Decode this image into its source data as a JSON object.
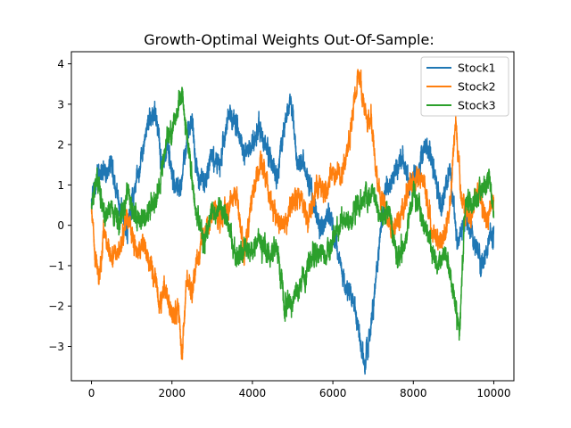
{
  "chart_data": {
    "type": "line",
    "title": "Growth-Optimal Weights Out-Of-Sample:",
    "xlabel": "",
    "ylabel": "",
    "xlim": [
      -500,
      10500
    ],
    "ylim": [
      -3.85,
      4.3
    ],
    "x_ticks": [
      0,
      2000,
      4000,
      6000,
      8000,
      10000
    ],
    "y_ticks": [
      -3,
      -2,
      -1,
      0,
      1,
      2,
      3,
      4
    ],
    "grid": false,
    "legend_position": "top-right",
    "n_points": 10000,
    "series": [
      {
        "name": "Stock1",
        "color": "#1f77b4",
        "x": [
          0,
          150,
          300,
          500,
          700,
          900,
          1000,
          1200,
          1400,
          1600,
          1750,
          1900,
          2000,
          2200,
          2300,
          2500,
          2600,
          2800,
          3000,
          3200,
          3400,
          3600,
          3800,
          4000,
          4200,
          4400,
          4600,
          4800,
          4950,
          5100,
          5300,
          5500,
          5700,
          5900,
          6100,
          6300,
          6500,
          6700,
          6800,
          6950,
          7100,
          7300,
          7500,
          7700,
          7900,
          8100,
          8300,
          8500,
          8700,
          8900,
          9100,
          9300,
          9500,
          9700,
          9900,
          10000
        ],
        "values": [
          0.6,
          1.2,
          1.3,
          1.5,
          0.5,
          -0.2,
          0.6,
          1.4,
          2.6,
          2.8,
          1.5,
          2.0,
          1.2,
          0.8,
          1.7,
          2.7,
          1.4,
          1.0,
          1.8,
          1.5,
          2.8,
          2.5,
          1.7,
          2.0,
          2.4,
          1.8,
          1.2,
          2.5,
          3.1,
          1.6,
          1.4,
          0.7,
          -0.2,
          0.3,
          -0.5,
          -1.5,
          -1.8,
          -3.0,
          -3.4,
          -2.5,
          -1.0,
          0.8,
          1.2,
          1.6,
          1.0,
          1.3,
          2.0,
          1.5,
          0.4,
          1.4,
          -0.5,
          0.2,
          -0.4,
          -1.0,
          -0.4,
          -0.3
        ]
      },
      {
        "name": "Stock2",
        "color": "#ff7f0e",
        "x": [
          0,
          100,
          200,
          300,
          500,
          700,
          900,
          1100,
          1300,
          1500,
          1700,
          1800,
          2000,
          2150,
          2250,
          2350,
          2500,
          2650,
          2800,
          3000,
          3200,
          3400,
          3600,
          3800,
          4000,
          4200,
          4400,
          4600,
          4800,
          5000,
          5200,
          5400,
          5600,
          5800,
          6000,
          6200,
          6400,
          6550,
          6650,
          6800,
          6950,
          7100,
          7300,
          7500,
          7700,
          7900,
          8100,
          8300,
          8500,
          8700,
          8900,
          9050,
          9200,
          9400,
          9600,
          9800,
          10000
        ],
        "values": [
          0.4,
          -0.8,
          -1.3,
          -0.2,
          -0.8,
          -0.6,
          0.3,
          -0.6,
          -0.5,
          -1.0,
          -2.0,
          -1.5,
          -2.3,
          -2.0,
          -3.2,
          -1.5,
          -1.5,
          -0.7,
          -0.2,
          0.3,
          0.1,
          0.5,
          0.8,
          -0.8,
          0.8,
          1.6,
          0.8,
          0.1,
          0.0,
          0.6,
          0.7,
          0.2,
          1.0,
          0.8,
          1.3,
          1.2,
          2.0,
          3.2,
          3.8,
          2.8,
          2.6,
          1.0,
          0.5,
          -0.3,
          0.3,
          1.0,
          1.2,
          0.9,
          -0.2,
          -0.4,
          0.3,
          2.6,
          0.7,
          0.1,
          1.0,
          0.0,
          0.7
        ]
      },
      {
        "name": "Stock3",
        "color": "#2ca02c",
        "x": [
          0,
          150,
          300,
          500,
          700,
          900,
          1100,
          1300,
          1500,
          1700,
          1900,
          2000,
          2100,
          2250,
          2400,
          2600,
          2800,
          3000,
          3200,
          3400,
          3600,
          3800,
          4000,
          4200,
          4400,
          4600,
          4800,
          5000,
          5200,
          5400,
          5600,
          5800,
          6000,
          6200,
          6400,
          6600,
          6800,
          7000,
          7200,
          7400,
          7600,
          7800,
          8000,
          8200,
          8400,
          8600,
          8800,
          9000,
          9150,
          9300,
          9500,
          9700,
          9900,
          10000
        ],
        "values": [
          0.5,
          1.2,
          0.3,
          0.5,
          0.1,
          0.8,
          0.2,
          0.2,
          0.5,
          1.0,
          2.3,
          2.2,
          2.7,
          3.3,
          2.0,
          0.3,
          -0.3,
          0.3,
          0.5,
          0.0,
          -0.9,
          -0.5,
          -0.7,
          -0.3,
          -0.7,
          -0.5,
          -2.0,
          -1.8,
          -1.5,
          -1.0,
          -0.6,
          -0.8,
          -0.4,
          0.1,
          0.0,
          0.5,
          0.7,
          0.8,
          0.2,
          0.4,
          -0.8,
          -0.5,
          0.9,
          0.2,
          -0.4,
          -1.0,
          -0.6,
          -1.7,
          -2.6,
          0.7,
          0.5,
          0.9,
          1.2,
          0.3
        ]
      }
    ]
  }
}
